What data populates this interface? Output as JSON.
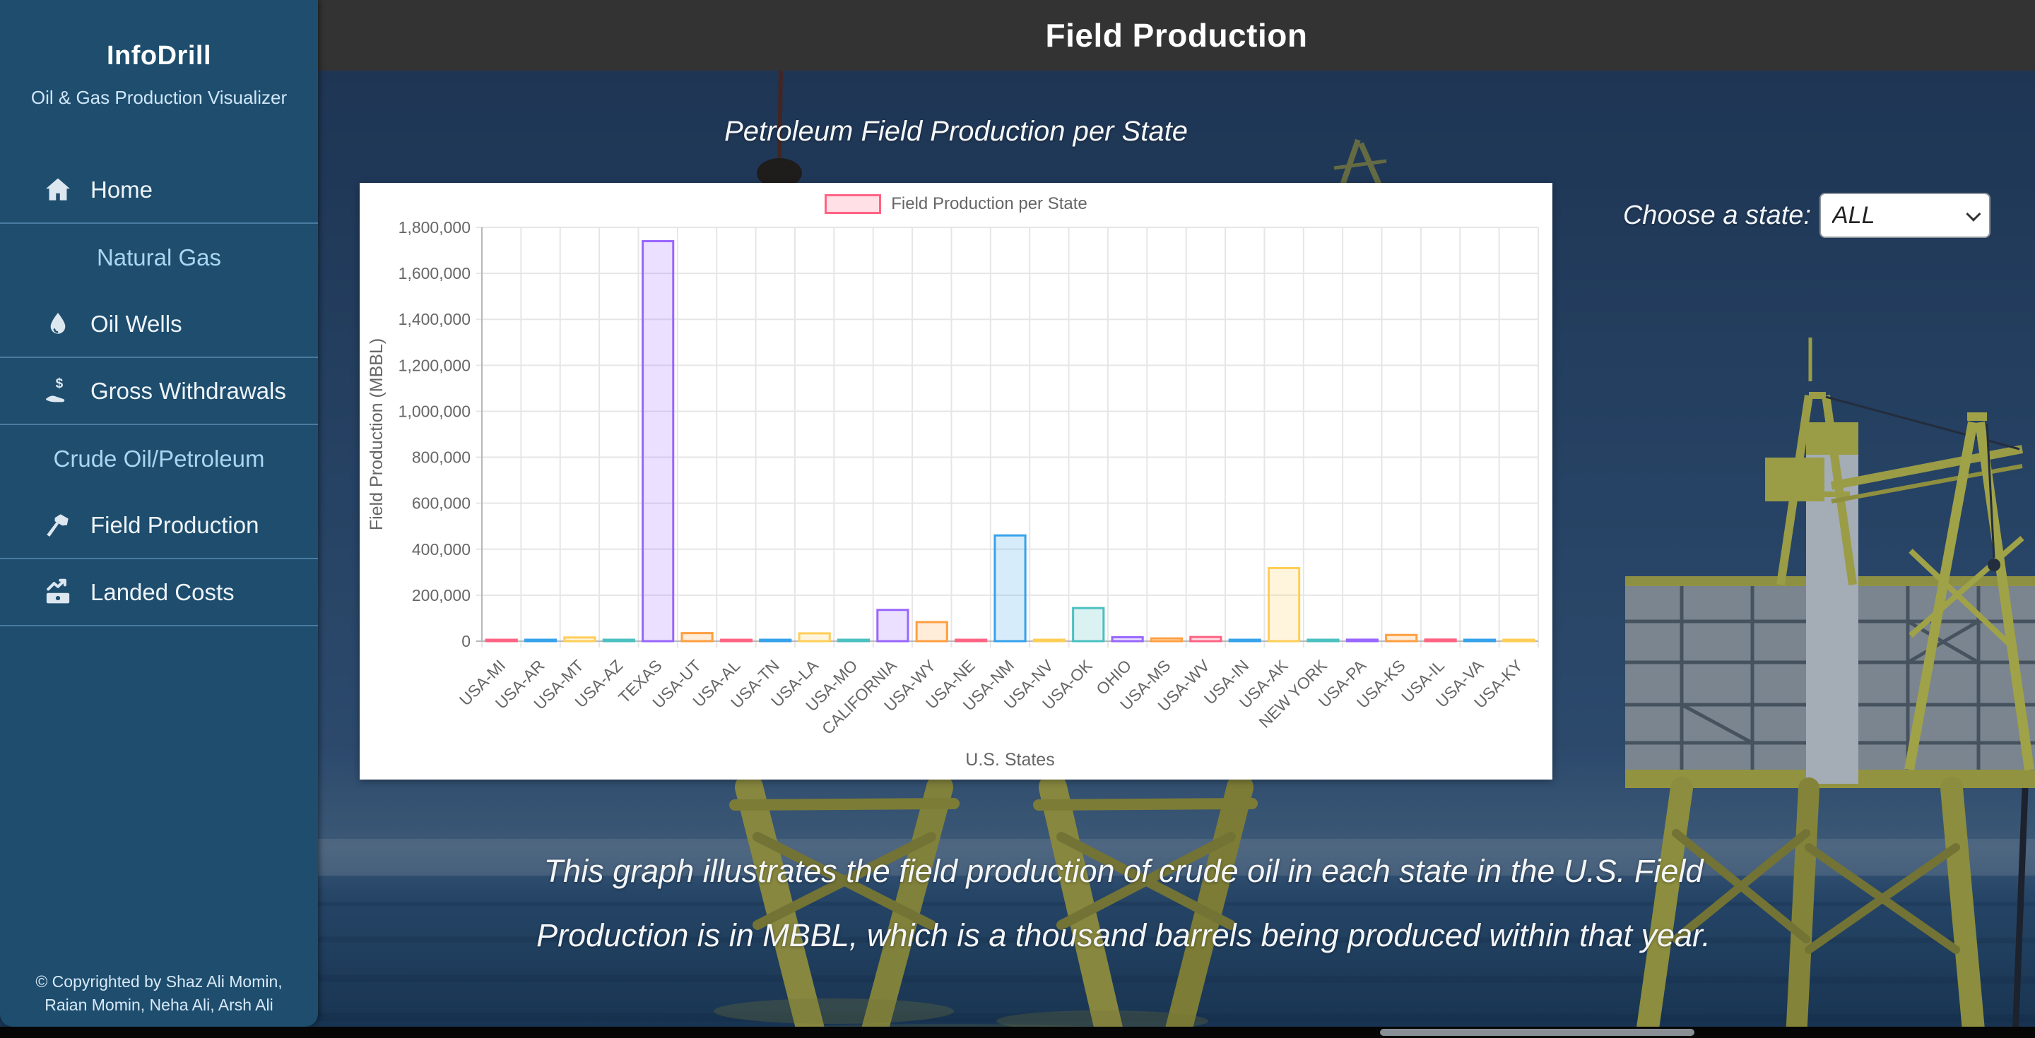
{
  "sidebar": {
    "title": "InfoDrill",
    "subtitle": "Oil & Gas Production Visualizer",
    "items": [
      {
        "label": "Home"
      },
      {
        "label": "Natural Gas"
      },
      {
        "label": "Oil Wells"
      },
      {
        "label": "Gross Withdrawals"
      },
      {
        "label": "Crude Oil/Petroleum"
      },
      {
        "label": "Field Production"
      },
      {
        "label": "Landed Costs"
      }
    ],
    "footer": "© Copyrighted by Shaz Ali Momin, Raian Momin, Neha Ali, Arsh Ali"
  },
  "header": {
    "title": "Field Production"
  },
  "main": {
    "chart_title": "Petroleum Field Production per State",
    "state_select": {
      "label": "Choose a state:",
      "value": "ALL",
      "options": [
        "ALL"
      ]
    },
    "description_line1": "This graph illustrates the field production of crude oil in each state in the U.S. Field",
    "description_line2": "Production is in MBBL, which is a thousand barrels being produced within that year."
  },
  "theme": {
    "sidebar_bg": "#1e4d6e",
    "header_bg": "#333333",
    "section_text": "#a9d6f0",
    "chart_card_bg": "#ffffff"
  },
  "chart_data": {
    "type": "bar",
    "title": "Petroleum Field Production per State",
    "legend_label": "Field Production per State",
    "xlabel": "U.S. States",
    "ylabel": "Field Production (MBBL)",
    "ylim": [
      0,
      1800000
    ],
    "y_tick_step": 200000,
    "grid": true,
    "legend_position": "top",
    "categories": [
      "USA-MI",
      "USA-AR",
      "USA-MT",
      "USA-AZ",
      "TEXAS",
      "USA-UT",
      "USA-AL",
      "USA-TN",
      "USA-LA",
      "USA-MO",
      "CALIFORNIA",
      "USA-WY",
      "USA-NE",
      "USA-NM",
      "USA-NV",
      "USA-OK",
      "OHIO",
      "USA-MS",
      "USA-WV",
      "USA-IN",
      "USA-AK",
      "NEW YORK",
      "USA-PA",
      "USA-KS",
      "USA-IL",
      "USA-VA",
      "USA-KY"
    ],
    "values": [
      5000,
      2500,
      16000,
      2000,
      1740000,
      35000,
      4500,
      3000,
      34000,
      2500,
      136000,
      83000,
      3000,
      460000,
      2500,
      144000,
      17000,
      12000,
      18000,
      3000,
      318000,
      2500,
      6500,
      27000,
      7000,
      3500,
      1500
    ],
    "palette": [
      {
        "name": "red",
        "border": "#FF6384",
        "fill": "rgba(255,99,132,0.2)"
      },
      {
        "name": "blue",
        "border": "#36A2EB",
        "fill": "rgba(54,162,235,0.2)"
      },
      {
        "name": "yellow",
        "border": "#FFCE56",
        "fill": "rgba(255,206,86,0.2)"
      },
      {
        "name": "teal",
        "border": "#4BC0C0",
        "fill": "rgba(75,192,192,0.2)"
      },
      {
        "name": "purple",
        "border": "#9966FF",
        "fill": "rgba(153,102,255,0.2)"
      },
      {
        "name": "orange",
        "border": "#FF9F40",
        "fill": "rgba(255,159,64,0.2)"
      }
    ]
  }
}
